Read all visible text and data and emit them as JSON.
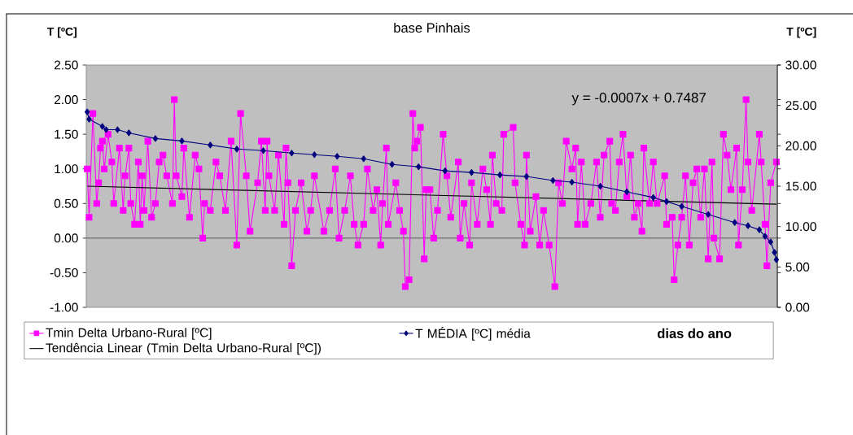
{
  "chart_data": {
    "type": "line",
    "title": "base Pinhais",
    "xlabel": "dias do ano",
    "ylabel": "T [ºC]",
    "y2label": "T [ºC]",
    "annotations": [
      "y = -0.0007x + 0.7487"
    ],
    "categories": [
      null,
      null,
      null,
      null,
      null,
      null,
      null,
      null,
      null,
      null,
      null,
      null,
      null,
      null,
      null,
      null,
      null,
      null,
      null,
      null,
      null,
      null,
      null,
      null,
      null,
      null,
      null,
      null,
      null,
      null,
      null,
      null,
      null,
      null,
      null,
      null,
      null,
      null,
      null,
      null,
      null,
      null,
      null,
      null,
      null,
      null,
      null,
      null,
      null,
      null,
      null,
      null,
      null,
      null,
      null,
      null,
      null,
      null,
      null,
      null,
      null,
      null,
      null,
      null,
      null,
      null,
      null,
      null,
      null,
      null,
      null,
      null,
      null,
      null,
      null,
      null,
      null,
      null,
      null,
      null,
      null,
      null,
      null,
      null,
      null,
      null,
      null,
      null,
      null,
      null,
      null,
      null,
      null,
      null,
      null,
      null,
      null,
      null,
      null,
      null,
      null,
      null,
      null,
      null,
      null,
      null,
      null,
      null,
      null,
      null,
      null,
      null,
      null,
      null,
      null,
      null,
      null,
      null,
      null,
      null,
      null,
      null,
      null,
      null,
      null,
      null,
      null,
      null,
      null,
      null,
      null,
      null,
      null,
      null,
      null,
      null,
      null,
      null,
      null,
      null,
      null,
      null,
      null,
      null,
      null,
      null,
      null,
      null,
      null,
      null,
      null,
      null,
      null,
      null,
      null,
      null,
      null,
      null,
      null,
      null,
      null,
      null,
      null,
      null,
      null,
      null,
      null,
      null,
      null,
      null,
      null,
      null,
      null,
      null,
      null,
      null,
      null,
      null,
      null,
      null,
      null,
      null,
      null,
      null,
      null,
      null,
      null,
      null,
      null,
      null,
      null,
      null,
      null,
      null,
      null,
      null,
      null,
      null,
      null,
      null,
      null,
      null,
      null,
      null,
      null,
      null,
      null,
      null,
      null,
      null,
      null,
      null,
      null,
      null,
      null,
      null,
      null,
      null,
      null,
      null,
      null,
      null,
      null,
      null,
      null,
      null,
      null,
      null,
      null,
      null,
      null,
      null,
      null,
      null,
      null,
      null,
      null,
      null,
      null,
      null,
      null,
      null,
      null,
      null,
      null,
      null,
      null,
      null,
      null,
      null,
      null,
      null,
      null,
      null,
      null,
      null,
      null,
      null,
      null,
      null,
      null,
      null,
      null,
      null,
      null,
      null,
      null,
      null,
      null,
      null,
      null,
      null,
      null,
      null,
      null,
      null,
      null,
      null,
      null,
      null,
      null,
      null,
      null,
      null,
      null,
      null,
      null,
      null,
      null,
      null,
      null,
      null,
      null,
      null,
      null,
      null,
      null,
      null,
      null,
      null,
      null,
      null,
      null,
      null,
      null,
      null,
      null,
      null,
      null,
      null,
      null,
      null,
      null,
      null,
      null,
      null,
      null,
      null,
      null,
      null,
      null,
      null,
      null,
      null,
      null,
      null,
      null,
      null,
      null,
      null,
      null,
      null,
      null,
      null,
      null,
      null,
      null,
      null,
      null,
      null,
      null,
      null,
      null,
      null,
      null,
      null,
      null,
      null,
      null,
      null,
      null,
      null,
      null,
      null,
      null,
      null,
      null,
      null,
      null,
      null,
      null,
      null,
      null,
      null,
      null
    ],
    "ylim": [
      -1,
      2.5
    ],
    "yticks": [
      {
        "value": -1,
        "label": "-1.00"
      },
      {
        "value": -0.5,
        "label": "-0.50"
      },
      {
        "value": 0,
        "label": "0.00"
      },
      {
        "value": 0.5,
        "label": "0.50"
      },
      {
        "value": 1,
        "label": "1.00"
      },
      {
        "value": 1.5,
        "label": "1.50"
      },
      {
        "value": 2,
        "label": "2.00"
      },
      {
        "value": 2.5,
        "label": "2.50"
      }
    ],
    "y2lim": [
      0,
      30
    ],
    "y2ticks": [
      {
        "value": 0,
        "label": "0.00"
      },
      {
        "value": 5,
        "label": "5.00"
      },
      {
        "value": 10,
        "label": "10.00"
      },
      {
        "value": 15,
        "label": "15.00"
      },
      {
        "value": 20,
        "label": "20.00"
      },
      {
        "value": 25,
        "label": "25.00"
      },
      {
        "value": 30,
        "label": "30.00"
      }
    ],
    "tick_labels": "y",
    "legend": "bottom",
    "ref_lines": [
      {
        "axis": "y",
        "value": 0,
        "color": "#404040"
      }
    ],
    "series": [
      {
        "name": "Tmin Delta Urbano-Rural [ºC]",
        "color": "#ff00ff",
        "marker": "square",
        "values": [
          1.0,
          0.3,
          null,
          1.8,
          null,
          0.5,
          0.8,
          1.3,
          1.4,
          1.0,
          null,
          1.5,
          null,
          1.1,
          0.5,
          null,
          null,
          1.3,
          null,
          0.4,
          0.9,
          null,
          1.3,
          0.5,
          null,
          0.2,
          null,
          1.1,
          0.2,
          0.9,
          0.4,
          null,
          1.4,
          null,
          0.3,
          null,
          0.5,
          null,
          1.1,
          null,
          1.2,
          null,
          0.9,
          null,
          null,
          0.5,
          2.0,
          0.9,
          null,
          null,
          0.6,
          1.3,
          null,
          null,
          0.3,
          null,
          null,
          1.2,
          null,
          1.0,
          null,
          0.0,
          0.5,
          null,
          null,
          0.4,
          null,
          null,
          1.1,
          null,
          0.9,
          null,
          null,
          0.4,
          null,
          null,
          1.4,
          null,
          null,
          -0.1,
          null,
          1.8,
          null,
          null,
          0.9,
          null,
          0.1,
          null,
          null,
          null,
          0.8,
          null,
          1.4,
          null,
          0.4,
          1.4,
          0.9,
          null,
          null,
          0.4,
          null,
          1.2,
          null,
          null,
          0.2,
          1.3,
          0.8,
          null,
          -0.4,
          null,
          0.4,
          null,
          null,
          0.8,
          null,
          null,
          0.1,
          null,
          0.4,
          null,
          0.9,
          null,
          null,
          null,
          null,
          0.1,
          null,
          null,
          0.4,
          null,
          null,
          1.0,
          null,
          0.0,
          null,
          null,
          0.4,
          null,
          null,
          0.9,
          null,
          0.2,
          null,
          -0.1,
          null,
          null,
          0.2,
          null,
          1.0,
          null,
          null,
          0.4,
          null,
          0.7,
          null,
          -0.1,
          0.5,
          null,
          1.3,
          0.2,
          null,
          null,
          null,
          0.8,
          null,
          0.4,
          null,
          0.1,
          -0.7,
          null,
          -0.6,
          null,
          1.8,
          1.3,
          1.4,
          null,
          1.6,
          null,
          -0.3,
          0.7,
          null,
          0.7,
          null,
          0.0,
          null,
          0.4,
          null,
          null,
          1.5,
          null,
          0.9,
          null,
          0.3,
          null,
          null,
          null,
          1.1,
          0.0,
          null,
          0.5,
          null,
          null,
          -0.1,
          0.8,
          null,
          null,
          0.2,
          null,
          null,
          1.0,
          null,
          0.7,
          null,
          0.2,
          1.2,
          null,
          0.5,
          null,
          null,
          0.4,
          1.5,
          null,
          null,
          null,
          null,
          1.6,
          0.8,
          null,
          null,
          0.2,
          null,
          -0.1,
          1.2,
          null,
          0.1,
          null,
          null,
          0.6,
          null,
          -0.1,
          null,
          0.4,
          null,
          null,
          -0.1,
          null,
          null,
          -0.7,
          null,
          0.8,
          null,
          0.5,
          null,
          1.4,
          null,
          null,
          1.0,
          null,
          1.3,
          0.2,
          null,
          1.1,
          null,
          0.2,
          null,
          null,
          0.5,
          null,
          null,
          1.1,
          null,
          0.3,
          null,
          1.2,
          null,
          null,
          1.4,
          0.5,
          null,
          0.4,
          null,
          1.1,
          null,
          1.5,
          null,
          0.6,
          null,
          1.2,
          null,
          0.3,
          null,
          0.5,
          null,
          0.1,
          1.3,
          null,
          null,
          0.5,
          null,
          1.1,
          null,
          0.5,
          null,
          null,
          null,
          0.9,
          0.2,
          null,
          null,
          0.3,
          -0.6,
          null,
          -0.1,
          null,
          0.3,
          null,
          0.9,
          null,
          -0.1,
          null,
          0.8,
          null,
          1.0,
          null,
          0.3,
          null,
          1.0,
          null,
          -0.3,
          null,
          1.1,
          0.0,
          null,
          null,
          -0.3,
          null,
          1.5,
          null,
          1.2,
          null,
          0.7,
          null,
          null,
          1.3,
          -0.1,
          null,
          0.7,
          null,
          2.0,
          1.1,
          null,
          0.4,
          null,
          null,
          null,
          1.5,
          1.1,
          null,
          0.2,
          -0.4,
          null,
          0.8,
          null,
          null,
          1.1
        ]
      },
      {
        "name": "T  MÉDIA [ºC] média",
        "color": "#000080",
        "marker": "diamond",
        "axis": "y2",
        "values": [
          24.2,
          23.3,
          null,
          null,
          null,
          null,
          null,
          null,
          22.4,
          null,
          22.0,
          null,
          null,
          null,
          null,
          null,
          22.0,
          null,
          null,
          null,
          null,
          null,
          21.6,
          null,
          null,
          null,
          null,
          null,
          null,
          null,
          null,
          null,
          null,
          null,
          null,
          null,
          20.9,
          null,
          null,
          null,
          null,
          null,
          null,
          null,
          null,
          null,
          null,
          null,
          null,
          null,
          20.6,
          null,
          null,
          null,
          null,
          null,
          null,
          null,
          null,
          null,
          null,
          null,
          null,
          null,
          null,
          20.1,
          null,
          null,
          null,
          null,
          null,
          null,
          null,
          null,
          null,
          null,
          null,
          null,
          null,
          19.6,
          null,
          null,
          null,
          null,
          null,
          null,
          null,
          null,
          null,
          null,
          null,
          null,
          null,
          19.4,
          null,
          null,
          null,
          null,
          null,
          null,
          null,
          null,
          null,
          null,
          null,
          null,
          null,
          null,
          19.1,
          null,
          null,
          null,
          null,
          null,
          null,
          null,
          null,
          null,
          null,
          null,
          18.9,
          null,
          null,
          null,
          null,
          null,
          null,
          null,
          null,
          null,
          null,
          null,
          18.7,
          null,
          null,
          null,
          null,
          null,
          null,
          null,
          null,
          null,
          null,
          null,
          null,
          null,
          18.4,
          null,
          null,
          null,
          null,
          null,
          null,
          null,
          null,
          null,
          null,
          null,
          null,
          null,
          null,
          17.7,
          null,
          null,
          null,
          null,
          null,
          null,
          null,
          null,
          null,
          null,
          null,
          null,
          null,
          17.4,
          null,
          null,
          null,
          null,
          null,
          null,
          null,
          null,
          null,
          null,
          null,
          null,
          null,
          16.9,
          null,
          null,
          null,
          null,
          null,
          null,
          null,
          null,
          null,
          null,
          null,
          null,
          null,
          16.7,
          null,
          null,
          null,
          null,
          null,
          null,
          null,
          null,
          null,
          null,
          null,
          null,
          null,
          null,
          16.4,
          null,
          null,
          null,
          null,
          null,
          null,
          null,
          null,
          null,
          null,
          null,
          null,
          null,
          16.2,
          null,
          null,
          null,
          null,
          null,
          null,
          null,
          null,
          null,
          null,
          null,
          null,
          null,
          15.7,
          null,
          null,
          null,
          null,
          null,
          null,
          null,
          null,
          null,
          15.5,
          null,
          null,
          null,
          null,
          null,
          null,
          null,
          null,
          null,
          null,
          null,
          null,
          null,
          null,
          15.0,
          null,
          null,
          null,
          null,
          null,
          null,
          null,
          null,
          null,
          null,
          null,
          null,
          null,
          14.3,
          null,
          null,
          null,
          null,
          null,
          null,
          null,
          null,
          null,
          null,
          null,
          null,
          null,
          13.6,
          null,
          null,
          null,
          null,
          null,
          null,
          13.1,
          null,
          null,
          null,
          null,
          null,
          null,
          null,
          12.5,
          null,
          null,
          null,
          null,
          null,
          null,
          null,
          null,
          null,
          null,
          null,
          null,
          null,
          11.5,
          null,
          null,
          null,
          null,
          null,
          null,
          null,
          null,
          null,
          null,
          null,
          null,
          null,
          10.5,
          null,
          null,
          null,
          null,
          null,
          null,
          10.1,
          null,
          null,
          null,
          null,
          null,
          9.6,
          null,
          null,
          8.8,
          null,
          null,
          8.1,
          null,
          6.8,
          5.9
        ]
      },
      {
        "name": "Tendência Linear (Tmin Delta Urbano-Rural [ºC])",
        "color": "#000000",
        "type": "line",
        "marker": "none",
        "values": [
          0.75,
          null,
          null,
          null,
          null,
          null,
          null,
          null,
          null,
          null,
          null,
          null,
          null,
          null,
          null,
          null,
          null,
          null,
          null,
          null,
          null,
          null,
          null,
          null,
          null,
          null,
          null,
          null,
          null,
          null,
          null,
          null,
          null,
          null,
          null,
          null,
          null,
          null,
          null,
          null,
          null,
          null,
          null,
          null,
          null,
          null,
          null,
          null,
          null,
          null,
          null,
          null,
          null,
          null,
          null,
          null,
          null,
          null,
          null,
          null,
          null,
          null,
          null,
          null,
          null,
          null,
          null,
          null,
          null,
          null,
          null,
          null,
          null,
          null,
          null,
          null,
          null,
          null,
          null,
          null,
          null,
          null,
          null,
          null,
          null,
          null,
          null,
          null,
          null,
          null,
          null,
          null,
          null,
          null,
          null,
          null,
          null,
          null,
          null,
          null,
          null,
          null,
          null,
          null,
          null,
          null,
          null,
          null,
          null,
          null,
          null,
          null,
          null,
          null,
          null,
          null,
          null,
          null,
          null,
          null,
          null,
          null,
          null,
          null,
          null,
          null,
          null,
          null,
          null,
          null,
          null,
          null,
          null,
          null,
          null,
          null,
          null,
          null,
          null,
          null,
          null,
          null,
          null,
          null,
          null,
          null,
          null,
          null,
          null,
          null,
          null,
          null,
          null,
          null,
          null,
          null,
          null,
          null,
          null,
          null,
          null,
          null,
          null,
          null,
          null,
          null,
          null,
          null,
          null,
          null,
          null,
          null,
          null,
          null,
          null,
          null,
          null,
          null,
          null,
          null,
          null,
          null,
          null,
          null,
          null,
          null,
          null,
          null,
          null,
          null,
          null,
          null,
          null,
          null,
          null,
          null,
          null,
          null,
          null,
          null,
          null,
          null,
          null,
          null,
          null,
          null,
          null,
          null,
          null,
          null,
          null,
          null,
          null,
          null,
          null,
          null,
          null,
          null,
          null,
          null,
          null,
          null,
          null,
          null,
          null,
          null,
          null,
          null,
          null,
          null,
          null,
          null,
          null,
          null,
          null,
          null,
          null,
          null,
          null,
          null,
          null,
          null,
          null,
          null,
          null,
          null,
          null,
          null,
          null,
          null,
          null,
          null,
          null,
          null,
          null,
          null,
          null,
          null,
          null,
          null,
          null,
          null,
          null,
          null,
          null,
          null,
          null,
          null,
          null,
          null,
          null,
          null,
          null,
          null,
          null,
          null,
          null,
          null,
          null,
          null,
          null,
          null,
          null,
          null,
          null,
          null,
          null,
          null,
          null,
          null,
          null,
          null,
          null,
          null,
          null,
          null,
          null,
          null,
          null,
          null,
          null,
          null,
          null,
          null,
          null,
          null,
          null,
          null,
          null,
          null,
          null,
          null,
          null,
          null,
          null,
          null,
          null,
          null,
          null,
          null,
          null,
          null,
          null,
          null,
          null,
          null,
          null,
          null,
          null,
          null,
          null,
          null,
          null,
          null,
          null,
          null,
          null,
          null,
          null,
          null,
          null,
          null,
          null,
          null,
          null,
          null,
          null,
          null,
          null,
          null,
          null,
          null,
          null,
          null,
          null,
          null,
          null,
          null,
          null,
          null,
          null,
          null,
          null,
          null,
          0.49
        ]
      }
    ]
  }
}
